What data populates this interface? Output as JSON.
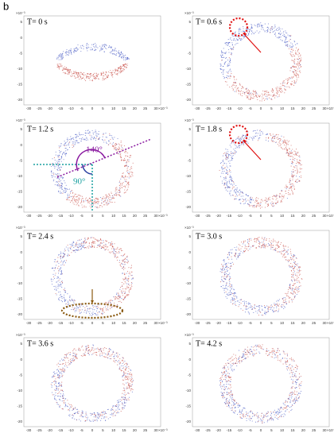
{
  "figure_label": "b",
  "panels": [
    {
      "title": "T= 0 s"
    },
    {
      "title": "T= 0.6 s"
    },
    {
      "title": "T= 1.2 s"
    },
    {
      "title": "T= 1.8 s"
    },
    {
      "title": "T= 2.4 s"
    },
    {
      "title": "T= 3.0 s"
    },
    {
      "title": "T= 3.6 s"
    },
    {
      "title": "T= 4.2 s"
    }
  ],
  "axes": {
    "xticks": [
      "-30",
      "-25",
      "-20",
      "-15",
      "-10",
      "-5",
      "0",
      "5",
      "10",
      "15",
      "20",
      "25",
      "30"
    ],
    "yticks": [
      "5",
      "0",
      "-5",
      "-10",
      "-15",
      "-20"
    ],
    "scale": "×10⁻³"
  },
  "annotations": {
    "angle_1": "140°",
    "angle_2": "90°"
  }
}
